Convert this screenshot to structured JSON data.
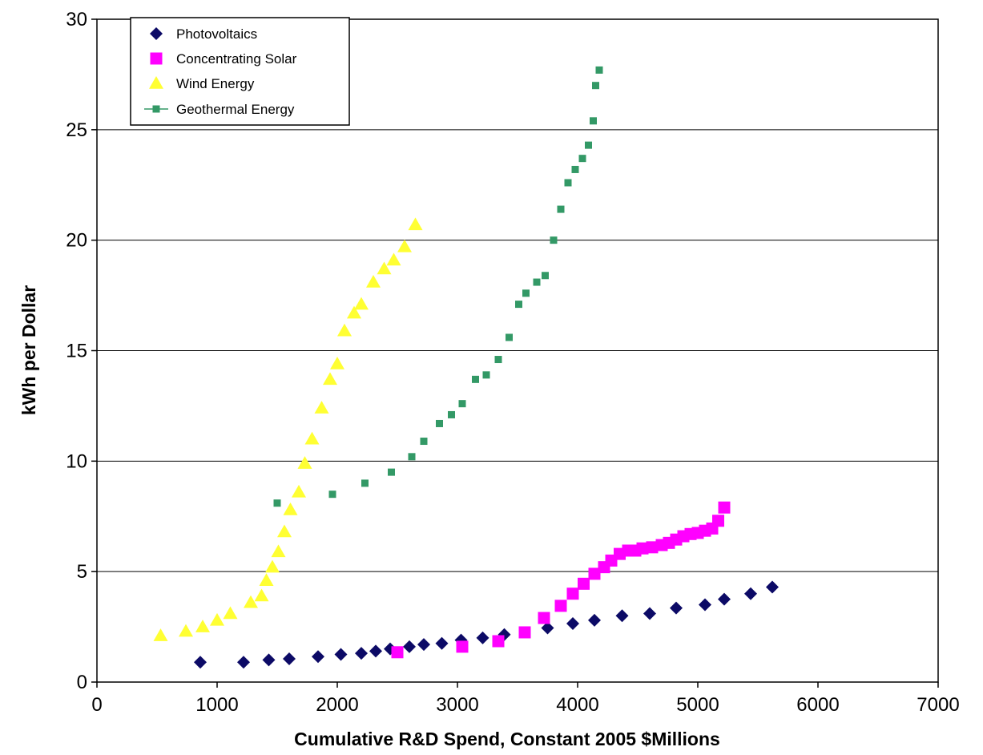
{
  "chart_data": {
    "type": "scatter",
    "title": "",
    "xlabel": "Cumulative R&D Spend, Constant 2005 $Millions",
    "ylabel": "kWh per Dollar",
    "xlim": [
      0,
      7000
    ],
    "ylim": [
      0,
      30
    ],
    "x_ticks": [
      "0",
      "1000",
      "2000",
      "3000",
      "4000",
      "5000",
      "6000",
      "7000"
    ],
    "y_ticks": [
      "0",
      "5",
      "10",
      "15",
      "20",
      "25",
      "30"
    ],
    "grid": "horizontal",
    "legend_position": "top-left",
    "series": [
      {
        "name": "Photovoltaics",
        "marker": "diamond",
        "color": "#0c0a66",
        "points": [
          [
            860,
            0.9
          ],
          [
            1220,
            0.9
          ],
          [
            1430,
            1.0
          ],
          [
            1600,
            1.05
          ],
          [
            1840,
            1.15
          ],
          [
            2030,
            1.25
          ],
          [
            2200,
            1.3
          ],
          [
            2320,
            1.4
          ],
          [
            2440,
            1.5
          ],
          [
            2600,
            1.6
          ],
          [
            2720,
            1.7
          ],
          [
            2870,
            1.75
          ],
          [
            3030,
            1.9
          ],
          [
            3210,
            2.0
          ],
          [
            3390,
            2.15
          ],
          [
            3750,
            2.45
          ],
          [
            3960,
            2.65
          ],
          [
            4140,
            2.8
          ],
          [
            4370,
            3.0
          ],
          [
            4600,
            3.1
          ],
          [
            4820,
            3.35
          ],
          [
            5060,
            3.5
          ],
          [
            5220,
            3.75
          ],
          [
            5440,
            4.0
          ],
          [
            5620,
            4.3
          ]
        ]
      },
      {
        "name": "Concentrating Solar",
        "marker": "square",
        "color": "#ff00ff",
        "points": [
          [
            2500,
            1.35
          ],
          [
            3040,
            1.6
          ],
          [
            3340,
            1.85
          ],
          [
            3560,
            2.25
          ],
          [
            3720,
            2.9
          ],
          [
            3860,
            3.45
          ],
          [
            3960,
            4.0
          ],
          [
            4050,
            4.45
          ],
          [
            4140,
            4.9
          ],
          [
            4220,
            5.2
          ],
          [
            4280,
            5.5
          ],
          [
            4350,
            5.8
          ],
          [
            4420,
            5.95
          ],
          [
            4480,
            5.95
          ],
          [
            4540,
            6.05
          ],
          [
            4620,
            6.1
          ],
          [
            4700,
            6.2
          ],
          [
            4760,
            6.3
          ],
          [
            4820,
            6.45
          ],
          [
            4880,
            6.6
          ],
          [
            4940,
            6.7
          ],
          [
            5000,
            6.75
          ],
          [
            5060,
            6.85
          ],
          [
            5120,
            6.95
          ],
          [
            5170,
            7.3
          ],
          [
            5220,
            7.9
          ]
        ]
      },
      {
        "name": "Wind Energy",
        "marker": "triangle",
        "color": "#ffff33",
        "points": [
          [
            530,
            2.1
          ],
          [
            740,
            2.3
          ],
          [
            880,
            2.5
          ],
          [
            1000,
            2.8
          ],
          [
            1110,
            3.1
          ],
          [
            1280,
            3.6
          ],
          [
            1370,
            3.9
          ],
          [
            1410,
            4.6
          ],
          [
            1460,
            5.2
          ],
          [
            1510,
            5.9
          ],
          [
            1560,
            6.8
          ],
          [
            1610,
            7.8
          ],
          [
            1680,
            8.6
          ],
          [
            1730,
            9.9
          ],
          [
            1790,
            11.0
          ],
          [
            1870,
            12.4
          ],
          [
            1940,
            13.7
          ],
          [
            2000,
            14.4
          ],
          [
            2060,
            15.9
          ],
          [
            2140,
            16.7
          ],
          [
            2200,
            17.1
          ],
          [
            2300,
            18.1
          ],
          [
            2390,
            18.7
          ],
          [
            2470,
            19.1
          ],
          [
            2560,
            19.7
          ],
          [
            2650,
            20.7
          ]
        ]
      },
      {
        "name": "Geothermal Energy",
        "marker": "small-square",
        "color": "#339966",
        "points": [
          [
            1500,
            8.1
          ],
          [
            1960,
            8.5
          ],
          [
            2230,
            9.0
          ],
          [
            2450,
            9.5
          ],
          [
            2620,
            10.2
          ],
          [
            2720,
            10.9
          ],
          [
            2850,
            11.7
          ],
          [
            2950,
            12.1
          ],
          [
            3040,
            12.6
          ],
          [
            3150,
            13.7
          ],
          [
            3240,
            13.9
          ],
          [
            3340,
            14.6
          ],
          [
            3430,
            15.6
          ],
          [
            3510,
            17.1
          ],
          [
            3570,
            17.6
          ],
          [
            3660,
            18.1
          ],
          [
            3730,
            18.4
          ],
          [
            3800,
            20.0
          ],
          [
            3860,
            21.4
          ],
          [
            3920,
            22.6
          ],
          [
            3980,
            23.2
          ],
          [
            4040,
            23.7
          ],
          [
            4090,
            24.3
          ],
          [
            4130,
            25.4
          ],
          [
            4150,
            27.0
          ],
          [
            4180,
            27.7
          ]
        ]
      }
    ]
  },
  "legend": {
    "items": [
      {
        "label": "Photovoltaics"
      },
      {
        "label": "Concentrating Solar"
      },
      {
        "label": "Wind Energy"
      },
      {
        "label": "Geothermal Energy"
      }
    ]
  }
}
